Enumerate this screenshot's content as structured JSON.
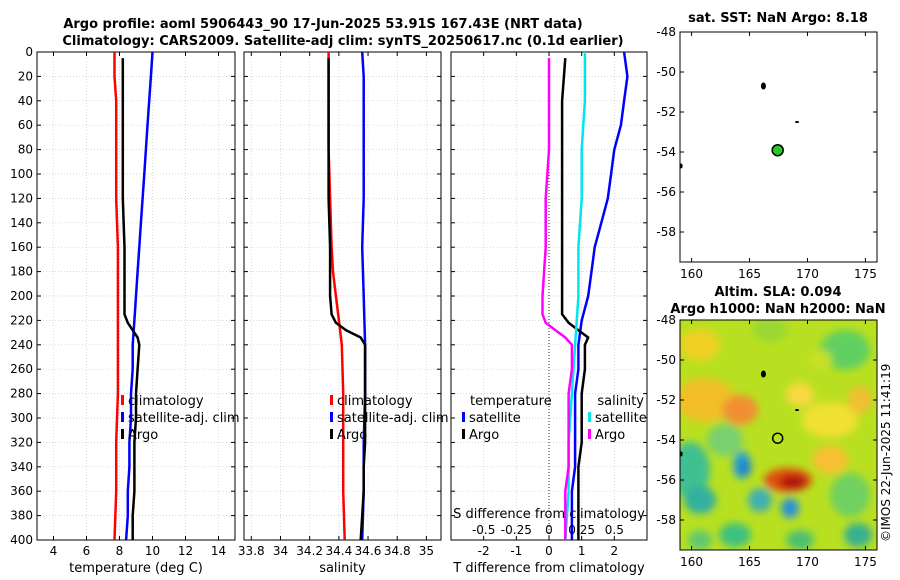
{
  "title_line1": "Argo profile: aoml 5906443_90 17-Jun-2025 53.91S 167.43E (NRT data)",
  "title_line2": "Climatology: CARS2009. Satellite-adj clim: synTS_20250617.nc (0.1d earlier)",
  "colors": {
    "climatology": "#ff0000",
    "satellite": "#0000ff",
    "argo": "#000000",
    "sat_diff_S": "#00e5ee",
    "clim_diff_S": "#ff00ff"
  },
  "chart_data": [
    {
      "type": "line",
      "id": "temperature",
      "xlabel": "temperature (deg C)",
      "ylabel": "",
      "xlim": [
        3,
        15
      ],
      "ylim": [
        0,
        400
      ],
      "xticks": [
        4,
        6,
        8,
        10,
        12,
        14
      ],
      "yticks": [
        0,
        20,
        40,
        60,
        80,
        100,
        120,
        140,
        160,
        180,
        200,
        220,
        240,
        260,
        280,
        300,
        320,
        340,
        360,
        380,
        400
      ],
      "legend": {
        "location": "lower-right",
        "entries": [
          "climatology",
          "satellite-adj. clim",
          "Argo"
        ]
      },
      "series": [
        {
          "name": "climatology",
          "color": "#ff0000",
          "depth": [
            0,
            20,
            40,
            80,
            120,
            160,
            200,
            240,
            280,
            320,
            360,
            400
          ],
          "values": [
            7.7,
            7.7,
            7.8,
            7.8,
            7.8,
            7.9,
            7.9,
            7.9,
            7.9,
            7.8,
            7.8,
            7.7
          ]
        },
        {
          "name": "satellite-adj. clim",
          "color": "#0000ff",
          "depth": [
            0,
            20,
            40,
            60,
            80,
            100,
            120,
            140,
            160,
            180,
            200,
            220,
            240,
            260,
            280,
            300,
            320,
            340,
            360,
            380,
            400
          ],
          "values": [
            10.0,
            9.9,
            9.8,
            9.7,
            9.6,
            9.5,
            9.4,
            9.3,
            9.2,
            9.1,
            9.0,
            8.9,
            8.8,
            8.8,
            8.7,
            8.7,
            8.6,
            8.6,
            8.5,
            8.5,
            8.4
          ]
        },
        {
          "name": "Argo",
          "color": "#000000",
          "depth": [
            5,
            40,
            80,
            120,
            160,
            200,
            215,
            222,
            228,
            234,
            240,
            260,
            280,
            300,
            320,
            340,
            360,
            380,
            400
          ],
          "values": [
            8.2,
            8.2,
            8.2,
            8.2,
            8.3,
            8.3,
            8.3,
            8.5,
            8.8,
            9.1,
            9.2,
            9.1,
            9.0,
            9.0,
            8.9,
            8.9,
            8.9,
            8.8,
            8.8
          ]
        }
      ]
    },
    {
      "type": "line",
      "id": "salinity",
      "xlabel": "salinity",
      "ylabel": "",
      "xlim": [
        33.75,
        35.1
      ],
      "ylim": [
        0,
        400
      ],
      "xticks": [
        33.8,
        34,
        34.2,
        34.4,
        34.6,
        34.8,
        35
      ],
      "legend": {
        "location": "lower-right",
        "entries": [
          "climatology",
          "satellite-adj. clim",
          "Argo"
        ]
      },
      "series": [
        {
          "name": "climatology",
          "color": "#ff0000",
          "depth": [
            0,
            40,
            80,
            120,
            160,
            180,
            200,
            220,
            240,
            280,
            320,
            360,
            400
          ],
          "values": [
            34.33,
            34.33,
            34.33,
            34.34,
            34.35,
            34.36,
            34.38,
            34.4,
            34.42,
            34.43,
            34.43,
            34.43,
            34.44
          ]
        },
        {
          "name": "satellite-adj. clim",
          "color": "#0000ff",
          "depth": [
            0,
            20,
            40,
            80,
            120,
            160,
            200,
            240,
            280,
            320,
            360,
            400
          ],
          "values": [
            34.56,
            34.57,
            34.57,
            34.57,
            34.57,
            34.56,
            34.57,
            34.58,
            34.58,
            34.57,
            34.57,
            34.56
          ]
        },
        {
          "name": "Argo",
          "color": "#000000",
          "depth": [
            5,
            40,
            80,
            120,
            160,
            200,
            215,
            222,
            228,
            234,
            240,
            260,
            280,
            300,
            320,
            340,
            360,
            380,
            400
          ],
          "values": [
            34.33,
            34.33,
            34.33,
            34.33,
            34.34,
            34.34,
            34.35,
            34.38,
            34.45,
            34.55,
            34.58,
            34.58,
            34.58,
            34.58,
            34.58,
            34.57,
            34.57,
            34.56,
            34.55
          ]
        }
      ]
    },
    {
      "type": "line",
      "id": "differences",
      "xlabel": "T difference from climatology",
      "x2label": "S difference from climatology",
      "xlim": [
        -3,
        3
      ],
      "ylim": [
        0,
        400
      ],
      "xticks": [
        -2,
        -1,
        0,
        1,
        2
      ],
      "x2ticks": [
        {
          "label": "-0.5",
          "at": -2
        },
        {
          "label": "-0.25",
          "at": -1
        },
        {
          "label": "0",
          "at": 0
        },
        {
          "label": "0.25",
          "at": 1
        },
        {
          "label": "0.5",
          "at": 2
        }
      ],
      "legend_left": {
        "heading": "temperature",
        "entries": [
          "satellite",
          "Argo"
        ]
      },
      "legend_right": {
        "heading": "salinity",
        "entries": [
          "satellite",
          "Argo"
        ]
      },
      "series": [
        {
          "name": "T satellite-clim",
          "color": "#0000ff",
          "depth": [
            0,
            20,
            40,
            60,
            80,
            100,
            120,
            140,
            160,
            180,
            200,
            220,
            240,
            260,
            280,
            300,
            320,
            340,
            360,
            380,
            400
          ],
          "values": [
            2.3,
            2.4,
            2.3,
            2.2,
            2.0,
            1.9,
            1.8,
            1.6,
            1.4,
            1.3,
            1.2,
            1.0,
            0.9,
            0.9,
            0.8,
            0.8,
            0.8,
            0.8,
            0.7,
            0.7,
            0.7
          ]
        },
        {
          "name": "T Argo-clim",
          "color": "#000000",
          "depth": [
            5,
            40,
            80,
            120,
            160,
            200,
            215,
            222,
            228,
            234,
            240,
            260,
            280,
            300,
            320,
            340,
            360,
            380,
            400
          ],
          "values": [
            0.5,
            0.4,
            0.4,
            0.4,
            0.4,
            0.4,
            0.4,
            0.6,
            0.9,
            1.2,
            1.1,
            1.1,
            1.0,
            1.0,
            1.0,
            0.9,
            0.9,
            0.9,
            0.9
          ]
        },
        {
          "name": "S satellite-clim",
          "color": "#00e5ee",
          "depth": [
            0,
            40,
            80,
            120,
            160,
            200,
            240,
            280,
            320,
            360,
            400
          ],
          "values": [
            1.1,
            1.1,
            1.0,
            1.0,
            0.9,
            0.9,
            0.8,
            0.7,
            0.6,
            0.6,
            0.5
          ]
        },
        {
          "name": "S Argo-clim",
          "color": "#ff00ff",
          "depth": [
            5,
            40,
            80,
            120,
            160,
            200,
            215,
            222,
            228,
            234,
            240,
            260,
            280,
            300,
            320,
            340,
            360,
            380,
            400
          ],
          "values": [
            0.0,
            0.0,
            0.0,
            -0.1,
            -0.1,
            -0.2,
            -0.2,
            -0.1,
            0.2,
            0.5,
            0.7,
            0.7,
            0.6,
            0.6,
            0.6,
            0.6,
            0.5,
            0.5,
            0.5
          ]
        }
      ]
    },
    {
      "type": "scatter",
      "id": "sst_map",
      "title": "sat. SST: NaN Argo: 8.18",
      "xlim": [
        159,
        176
      ],
      "ylim": [
        -59.5,
        -48
      ],
      "xticks": [
        160,
        165,
        170,
        175
      ],
      "yticks": [
        -48,
        -50,
        -52,
        -54,
        -56,
        -58
      ],
      "points": [
        {
          "lon": 167.43,
          "lat": -53.91,
          "label": "Argo profile",
          "color": "#22cc22"
        }
      ]
    },
    {
      "type": "heatmap",
      "id": "sla_map",
      "title_line1": "Altim. SLA: 0.094",
      "title_line2": "Argo h1000: NaN h2000: NaN",
      "xlim": [
        159,
        176
      ],
      "ylim": [
        -59.5,
        -48
      ],
      "xticks": [
        160,
        165,
        170,
        175
      ],
      "yticks": [
        -48,
        -50,
        -52,
        -54,
        -56,
        -58
      ],
      "points": [
        {
          "lon": 167.43,
          "lat": -53.91,
          "label": "Argo profile"
        }
      ]
    }
  ],
  "watermark": "©IMOS 22-Jun-2025 11:41:19"
}
